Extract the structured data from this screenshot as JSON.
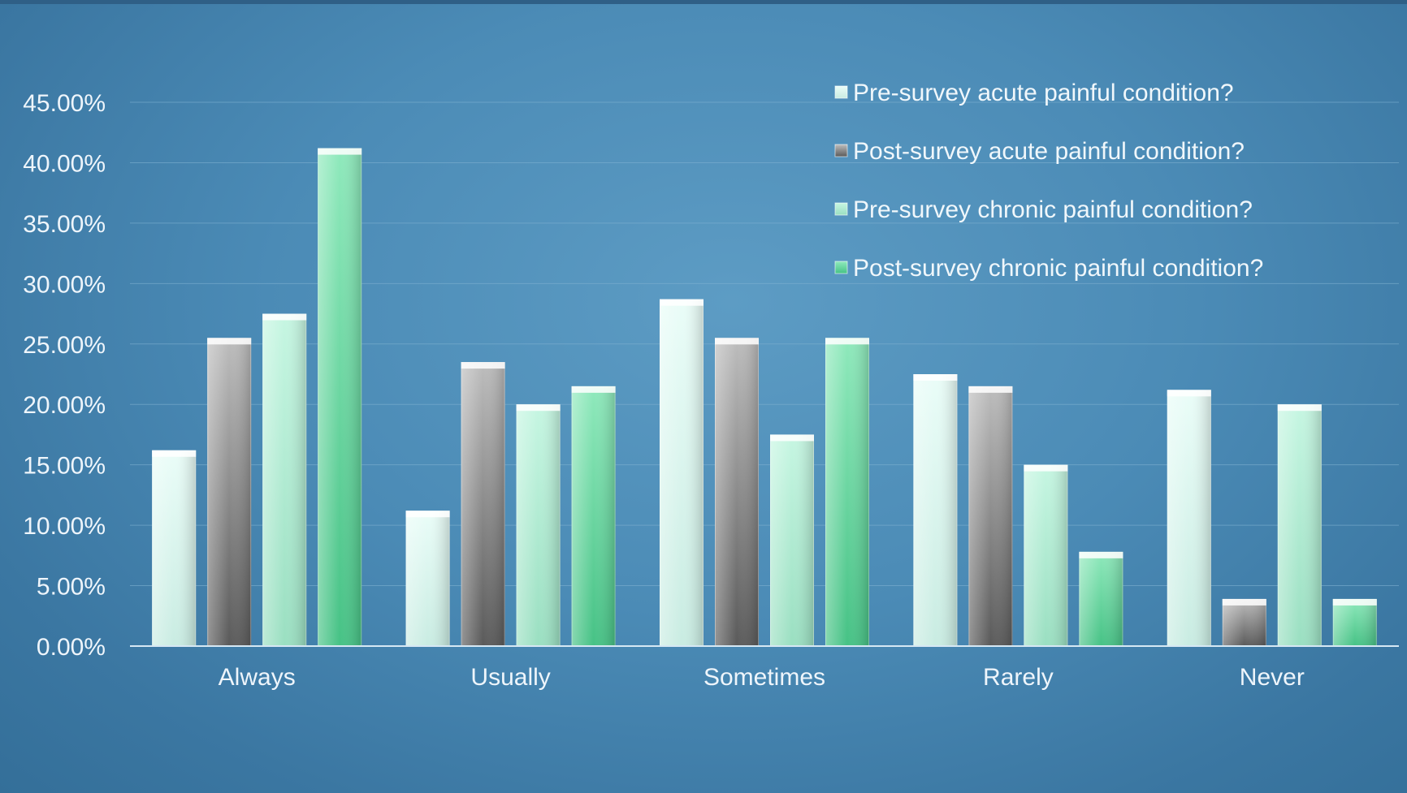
{
  "chart_data": {
    "type": "bar",
    "categories": [
      "Always",
      "Usually",
      "Sometimes",
      "Rarely",
      "Never"
    ],
    "series": [
      {
        "name": "Pre-survey acute painful condition?",
        "values": [
          16.2,
          11.2,
          28.7,
          22.5,
          21.2
        ],
        "color": "#eafdf8",
        "dark": "#c9ece2"
      },
      {
        "name": "Post-survey acute painful condition?",
        "values": [
          25.5,
          23.5,
          25.5,
          21.5,
          3.9
        ],
        "color": "#bdbdbd",
        "dark": "#5a5a5a"
      },
      {
        "name": "Pre-survey chronic painful condition?",
        "values": [
          27.5,
          20.0,
          17.5,
          15.0,
          20.0
        ],
        "color": "#c6f6e2",
        "dark": "#9adfc1"
      },
      {
        "name": "Post-survey chronic painful condition?",
        "values": [
          41.2,
          21.5,
          25.5,
          7.8,
          3.9
        ],
        "color": "#8fe9bc",
        "dark": "#46c285"
      }
    ],
    "ylim": [
      0,
      45
    ],
    "ytick_step": 5,
    "ytick_labels": [
      "0.00%",
      "5.00%",
      "10.00%",
      "15.00%",
      "20.00%",
      "25.00%",
      "30.00%",
      "35.00%",
      "40.00%",
      "45.00%"
    ],
    "grid": true,
    "legend_position": "top-right",
    "title": "",
    "xlabel": "",
    "ylabel": ""
  }
}
